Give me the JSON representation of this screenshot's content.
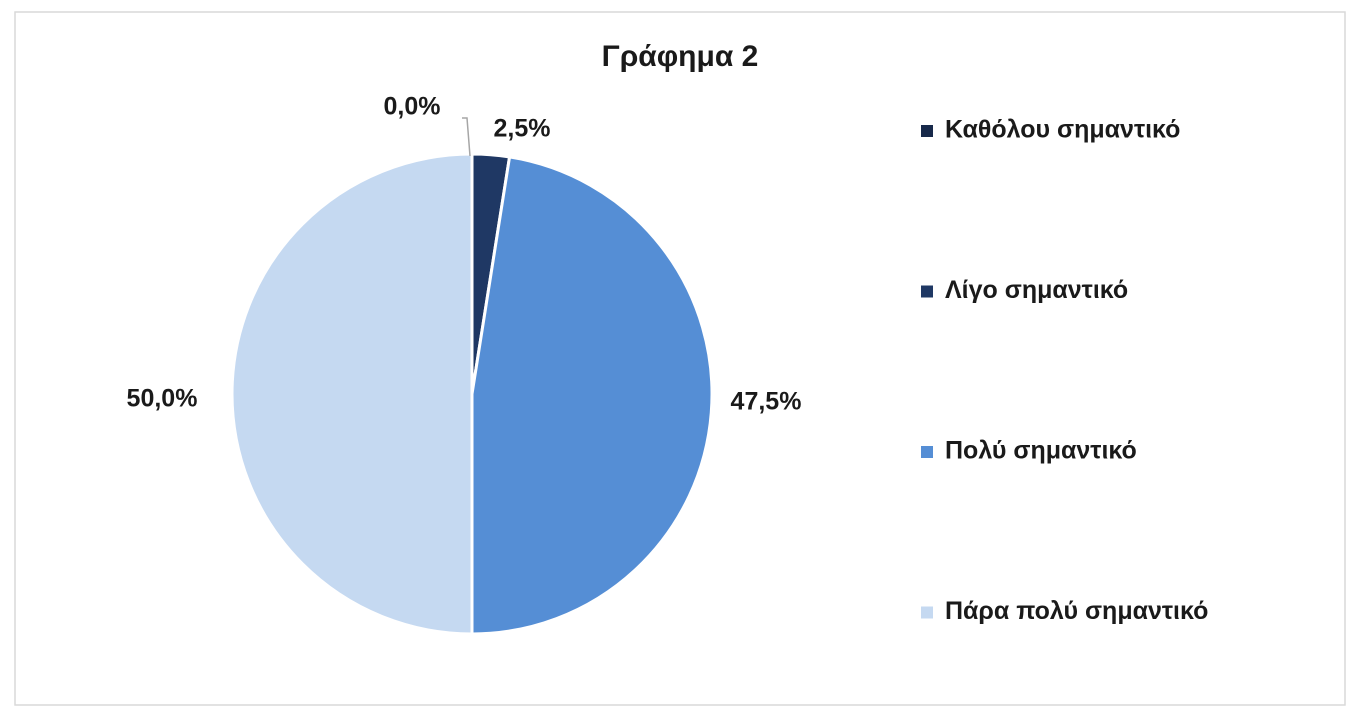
{
  "chart_data": {
    "type": "pie",
    "title": "Γράφημα 2",
    "categories": [
      "Καθόλου σημαντικό",
      "Λίγο σημαντικό",
      "Πολύ σημαντικό",
      "Πάρα πολύ σημαντικό"
    ],
    "values": [
      0.0,
      2.5,
      47.5,
      50.0
    ],
    "value_labels": [
      "0,0%",
      "2,5%",
      "47,5%",
      "50,0%"
    ],
    "colors": [
      "#17294a",
      "#1f3864",
      "#558ed5",
      "#c5d9f1"
    ],
    "legend": "right"
  }
}
